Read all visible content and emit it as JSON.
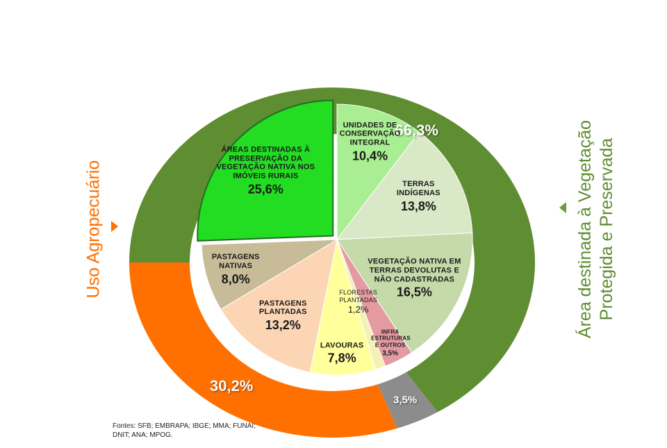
{
  "chart_data": [
    {
      "type": "pie",
      "categories": [
        "UNIDADES DE CONSERVAÇÃO INTEGRAL",
        "TERRAS INDÍGENAS",
        "VEGETAÇÃO NATIVA EM TERRAS DEVOLUTAS E NÃO CADASTRADAS",
        "INFRA ESTRUTURAS E OUTROS",
        "FLORESTAS PLANTADAS",
        "LAVOURAS",
        "PASTAGENS PLANTADAS",
        "PASTAGENS NATIVAS",
        "ÁREAS DESTINADAS À PRESERVAÇÃO DA VEGETAÇÃO NATIVA NOS IMÓVEIS RURAIS"
      ],
      "values": [
        10.4,
        13.8,
        16.5,
        3.5,
        1.2,
        7.8,
        13.2,
        8.0,
        25.6
      ],
      "value_labels": [
        "10,4%",
        "13,8%",
        "16,5%",
        "3,5%",
        "1,2%",
        "7,8%",
        "13,2%",
        "8,0%",
        "25,6%"
      ],
      "colors": [
        "#a9ee92",
        "#d9e8c6",
        "#c4daa9",
        "#e39aa0",
        "#f3f1b6",
        "#ffff9c",
        "#fcd5b5",
        "#c8bb97",
        "#22dd22"
      ],
      "explode": [
        false,
        false,
        false,
        false,
        false,
        false,
        false,
        false,
        true
      ]
    },
    {
      "type": "donut",
      "categories": [
        "Área destinada à Vegetação Protegida e Preservada",
        null,
        "Uso Agropecuário"
      ],
      "values": [
        66.3,
        3.5,
        30.2
      ],
      "value_labels": [
        "66,3%",
        "3,5%",
        "30,2%"
      ],
      "colors": [
        "#5f8d32",
        "#8c8c8c",
        "#ff7000"
      ]
    }
  ],
  "source": "Fontes: SFB; EMBRAPA;  IBGE; MMA; FUNAI; DNIT; ANA;  MPOG."
}
